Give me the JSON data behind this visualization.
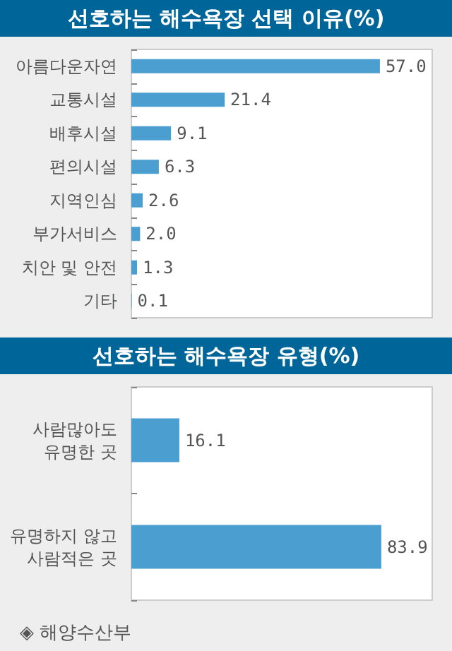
{
  "chart_data": [
    {
      "type": "bar",
      "orientation": "horizontal",
      "title": "선호하는 해수욕장 선택 이유(%)",
      "categories": [
        "아름다운자연",
        "교통시설",
        "배후시설",
        "편의시설",
        "지역인심",
        "부가서비스",
        "치안 및 안전",
        "기타"
      ],
      "values": [
        57.0,
        21.4,
        9.1,
        6.3,
        2.6,
        2.0,
        1.3,
        0.1
      ],
      "value_labels": [
        "57.0",
        "21.4",
        "9.1",
        "6.3",
        "2.6",
        "2.0",
        "1.3",
        "0.1"
      ],
      "color": "#4a9fd0",
      "xlim": [
        0,
        69
      ]
    },
    {
      "type": "bar",
      "orientation": "horizontal",
      "title": "선호하는 해수욕장 유형(%)",
      "categories": [
        "사람많아도 유명한 곳",
        "유명하지 않고 사람적은 곳"
      ],
      "values": [
        16.1,
        83.9
      ],
      "value_labels": [
        "16.1",
        "83.9"
      ],
      "color": "#4a9fd0",
      "xlim": [
        0,
        101
      ],
      "annotations": [
        "◈ 해양수산부"
      ]
    }
  ]
}
